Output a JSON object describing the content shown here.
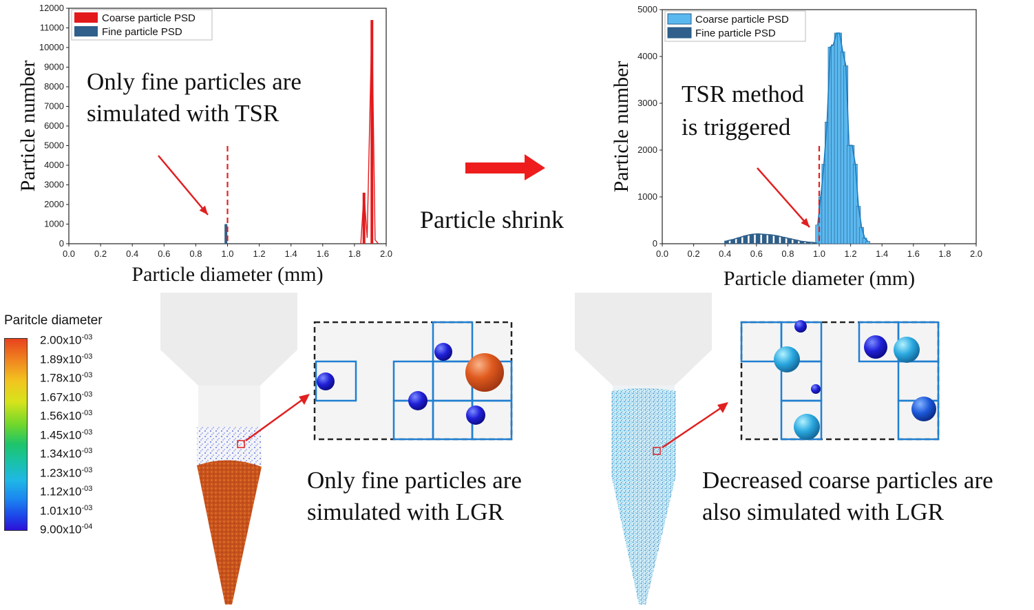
{
  "chart_data": [
    {
      "type": "bar",
      "xlabel": "Particle diameter (mm)",
      "ylabel": "Particle number",
      "xlim": [
        0.0,
        2.0
      ],
      "ylim": [
        0,
        12000
      ],
      "xticks": [
        "0.0",
        "0.2",
        "0.4",
        "0.6",
        "0.8",
        "1.0",
        "1.2",
        "1.4",
        "1.6",
        "1.8",
        "2.0"
      ],
      "yticks": [
        "0",
        "1000",
        "2000",
        "3000",
        "4000",
        "5000",
        "6000",
        "7000",
        "8000",
        "9000",
        "10000",
        "11000",
        "12000"
      ],
      "legend_position": "top-left",
      "cutoff_line_x": 1.0,
      "annotation": [
        "Only fine particles are",
        "simulated with TSR"
      ],
      "series": [
        {
          "name": "Coarse particle PSD",
          "color": "#e31a1c",
          "x": [
            1.86,
            1.91
          ],
          "values": [
            2600,
            11400
          ]
        },
        {
          "name": "Fine particle PSD",
          "color": "#2f5f8a",
          "x": [
            0.99
          ],
          "values": [
            1000
          ]
        }
      ]
    },
    {
      "type": "bar",
      "xlabel": "Particle diameter (mm)",
      "ylabel": "Particle number",
      "xlim": [
        0.0,
        2.0
      ],
      "ylim": [
        0,
        5000
      ],
      "xticks": [
        "0.0",
        "0.2",
        "0.4",
        "0.6",
        "0.8",
        "1.0",
        "1.2",
        "1.4",
        "1.6",
        "1.8",
        "2.0"
      ],
      "yticks": [
        "0",
        "1000",
        "2000",
        "3000",
        "4000",
        "5000"
      ],
      "legend_position": "top-left",
      "cutoff_line_x": 1.0,
      "annotation": [
        "TSR method",
        "is triggered"
      ],
      "series": [
        {
          "name": "Coarse particle PSD",
          "color": "#5ab8ef",
          "x": [
            0.99,
            1.01,
            1.03,
            1.05,
            1.07,
            1.09,
            1.11,
            1.13,
            1.15,
            1.17,
            1.19,
            1.21,
            1.23,
            1.25,
            1.27,
            1.29,
            1.31
          ],
          "values": [
            400,
            1000,
            1700,
            2600,
            4200,
            4250,
            4500,
            4500,
            4100,
            3800,
            2100,
            2100,
            1700,
            800,
            350,
            120,
            50
          ]
        },
        {
          "name": "Fine particle PSD",
          "color": "#2f5f8a",
          "x": [
            0.41,
            0.45,
            0.49,
            0.53,
            0.57,
            0.61,
            0.65,
            0.69,
            0.73,
            0.77,
            0.81,
            0.85,
            0.89,
            0.93,
            0.97
          ],
          "values": [
            60,
            90,
            130,
            170,
            200,
            210,
            200,
            190,
            170,
            140,
            110,
            80,
            50,
            35,
            25
          ]
        }
      ]
    }
  ],
  "middle_label": "Particle shrink",
  "colorbar": {
    "title": "Paritcle diameter",
    "labels": [
      "2.00x10",
      "1.89x10",
      "1.78x10",
      "1.67x10",
      "1.56x10",
      "1.45x10",
      "1.34x10",
      "1.23x10",
      "1.12x10",
      "1.01x10",
      "9.00x10"
    ],
    "exponents": [
      "-03",
      "-03",
      "-03",
      "-03",
      "-03",
      "-03",
      "-03",
      "-03",
      "-03",
      "-03",
      "-04"
    ]
  },
  "captions": {
    "left": [
      "Only fine particles are",
      "simulated with LGR"
    ],
    "right": [
      "Decreased coarse particles are",
      "also simulated with LGR"
    ]
  }
}
